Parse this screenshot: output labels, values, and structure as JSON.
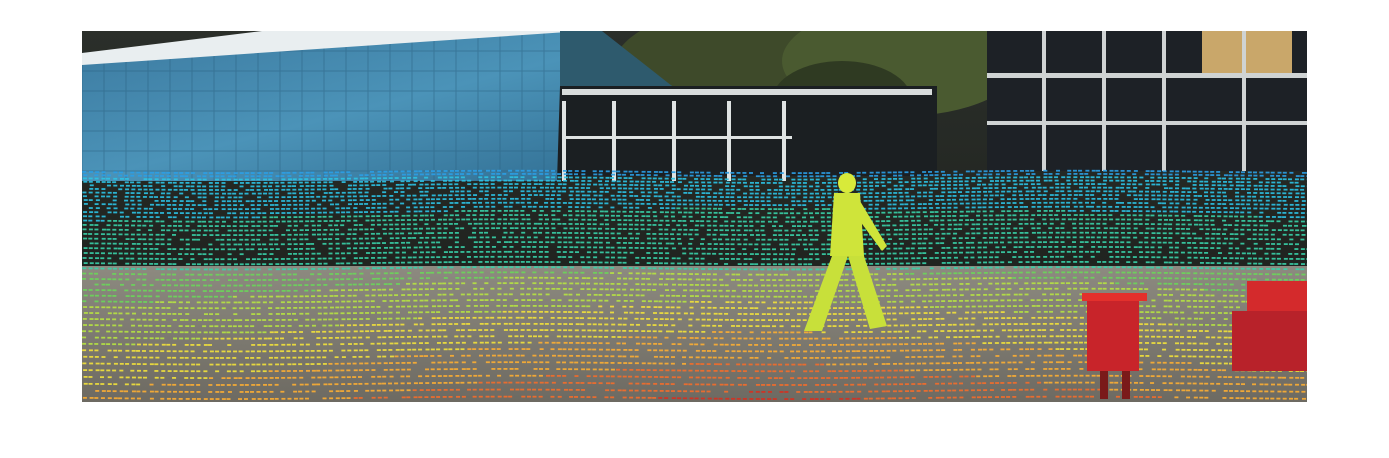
{
  "figure": {
    "kind": "camera photo with projected LiDAR depth point cloud overlay",
    "colormap": "jet",
    "colormap_stops": [
      "#d7301f",
      "#f46d2a",
      "#fdae32",
      "#f3e23a",
      "#b6e341",
      "#6ad65a",
      "#39d1a8",
      "#2cc3e6",
      "#2b9fe5",
      "#2a6fd9"
    ],
    "background": "#ffffff",
    "scene_elements": [
      "blue-tiled-building",
      "glass-windowed-building",
      "trees",
      "paved-courtyard",
      "pedestrian",
      "red-trash-bin",
      "red-bench"
    ]
  }
}
